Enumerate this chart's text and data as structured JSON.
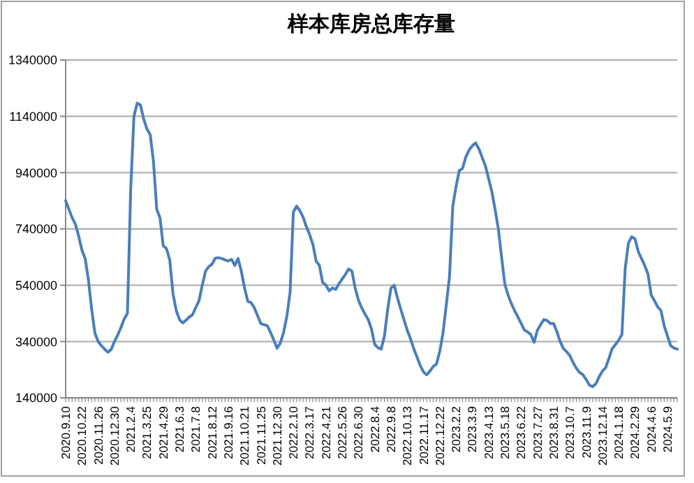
{
  "chart_data": {
    "type": "line",
    "title": "样本库房总库存量",
    "categories": [
      "2020.9.10",
      null,
      null,
      null,
      null,
      "2020.10.22",
      null,
      null,
      null,
      null,
      "2020.11.26",
      null,
      null,
      null,
      null,
      "2020.12.30",
      null,
      null,
      null,
      null,
      "2021.2.4",
      null,
      null,
      null,
      null,
      "2021.3.25",
      null,
      null,
      null,
      null,
      "2021.4.29",
      null,
      null,
      null,
      null,
      "2021.6.3",
      null,
      null,
      null,
      null,
      "2021.7.8",
      null,
      null,
      null,
      null,
      "2021.8.12",
      null,
      null,
      null,
      null,
      "2021.9.16",
      null,
      null,
      null,
      null,
      "2021.10.21",
      null,
      null,
      null,
      null,
      "2021.11.25",
      null,
      null,
      null,
      null,
      "2021.12.30",
      null,
      null,
      null,
      null,
      "2022.2.10",
      null,
      null,
      null,
      null,
      "2022.3.17",
      null,
      null,
      null,
      null,
      "2022.4.21",
      null,
      null,
      null,
      null,
      "2022.5.26",
      null,
      null,
      null,
      null,
      "2022.6.30",
      null,
      null,
      null,
      null,
      "2022.8.4",
      null,
      null,
      null,
      null,
      "2022.9.8",
      null,
      null,
      null,
      null,
      "2022.10.13",
      null,
      null,
      null,
      null,
      "2022.11.17",
      null,
      null,
      null,
      null,
      "2022.12.22",
      null,
      null,
      null,
      null,
      "2023.2.2",
      null,
      null,
      null,
      null,
      "2023.3.9",
      null,
      null,
      null,
      null,
      "2023.4.13",
      null,
      null,
      null,
      null,
      "2023.5.18",
      null,
      null,
      null,
      null,
      "2023.6.22",
      null,
      null,
      null,
      null,
      "2023.7.27",
      null,
      null,
      null,
      null,
      "2023.8.31",
      null,
      null,
      null,
      null,
      "2023.10.7",
      null,
      null,
      null,
      null,
      "2023.11.9",
      null,
      null,
      null,
      null,
      "2023.12.14",
      null,
      null,
      null,
      null,
      "2024.1.18",
      null,
      null,
      null,
      null,
      "2024.2.29",
      null,
      null,
      null,
      null,
      "2024.4.6",
      null,
      null,
      null,
      null,
      "2024.5.9",
      null,
      null,
      null
    ],
    "series": [
      {
        "color": "#4a7ebb",
        "values": [
          840000,
          810000,
          780000,
          757000,
          715000,
          665000,
          635000,
          560000,
          455000,
          370000,
          340000,
          325000,
          313000,
          302000,
          312000,
          340000,
          363000,
          390000,
          420000,
          440000,
          880000,
          1140000,
          1187000,
          1180000,
          1130000,
          1095000,
          1075000,
          980000,
          810000,
          780000,
          680000,
          670000,
          630000,
          510000,
          450000,
          418000,
          406000,
          416000,
          427000,
          435000,
          461000,
          485000,
          540000,
          590000,
          606000,
          615000,
          636000,
          638000,
          635000,
          630000,
          626000,
          632000,
          610000,
          635000,
          590000,
          530000,
          483000,
          478000,
          460000,
          432000,
          404000,
          400000,
          396000,
          372000,
          345000,
          316000,
          335000,
          372000,
          430000,
          515000,
          800000,
          821000,
          805000,
          782000,
          748000,
          720000,
          685000,
          626000,
          610000,
          550000,
          541000,
          520000,
          530000,
          525000,
          545000,
          562000,
          578000,
          598000,
          590000,
          530000,
          487000,
          460000,
          438000,
          418000,
          385000,
          330000,
          318000,
          313000,
          360000,
          455000,
          530000,
          540000,
          495000,
          455000,
          418000,
          380000,
          350000,
          315000,
          285000,
          255000,
          232000,
          222000,
          235000,
          252000,
          260000,
          305000,
          370000,
          470000,
          570000,
          820000,
          890000,
          947000,
          955000,
          995000,
          1020000,
          1035000,
          1046000,
          1025000,
          995000,
          965000,
          920000,
          873000,
          810000,
          741000,
          640000,
          544000,
          505000,
          475000,
          450000,
          428000,
          405000,
          381000,
          374000,
          365000,
          337000,
          380000,
          400000,
          418000,
          415000,
          404000,
          404000,
          375000,
          340000,
          315000,
          304000,
          290000,
          265000,
          245000,
          230000,
          222000,
          205000,
          185000,
          180000,
          190000,
          215000,
          235000,
          247000,
          280000,
          315000,
          329000,
          345000,
          365000,
          600000,
          690000,
          712000,
          705000,
          660000,
          635000,
          610000,
          580000,
          505000,
          485000,
          463000,
          450000,
          395000,
          360000,
          325000,
          317000,
          313000
        ]
      }
    ],
    "ylim": [
      140000,
      1340000
    ],
    "yticks": [
      140000,
      340000,
      540000,
      740000,
      940000,
      1140000,
      1340000
    ],
    "grid": "y"
  }
}
